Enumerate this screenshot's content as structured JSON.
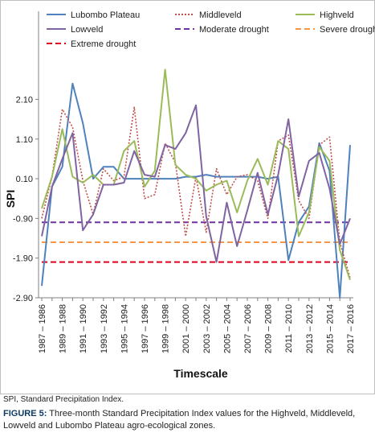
{
  "chart_data": {
    "type": "line",
    "title": "",
    "xlabel": "Timescale",
    "ylabel": "SPI",
    "ylim": [
      -2.9,
      2.9
    ],
    "yticks": [
      "-2.90",
      "-1.90",
      "-0.90",
      "0.10",
      "1.10",
      "2.10"
    ],
    "grid": false,
    "legend_position": "top",
    "categories": [
      "1987–1986",
      "1988–1987",
      "1989–1988",
      "1990–1989",
      "1991–1990",
      "1992–1991",
      "1993–1992",
      "1994–1993",
      "1995–1994",
      "1996–1995",
      "1997–1996",
      "1998–1997",
      "1999–1998",
      "2000–1999",
      "2001–2000",
      "2002–2001",
      "2003–2002",
      "2004–2003",
      "2005–2004",
      "2006–2005",
      "2007–2006",
      "2008–2007",
      "2009–2008",
      "2010–2009",
      "2011–2010",
      "2012–2011",
      "2013–2012",
      "2014–2013",
      "2015–2014",
      "2016–2015",
      "2017–2016"
    ],
    "x_tick_labels": [
      "1987 – 1986",
      "1989 – 1988",
      "1991 – 1990",
      "1993 – 1992",
      "1995 – 1994",
      "1997 – 1996",
      "1999 – 1998",
      "2001 – 2000",
      "2003 – 2002",
      "2005 – 2004",
      "2007 – 2006",
      "2009 – 2008",
      "2011 – 2010",
      "2013 – 2012",
      "2015 – 2014",
      "2017 – 2016"
    ],
    "series": [
      {
        "name": "Lubombo Plateau",
        "color": "#4f81bd",
        "style": "solid",
        "values": [
          -2.6,
          -0.1,
          0.4,
          2.5,
          1.5,
          0.1,
          0.4,
          0.4,
          0.1,
          0.1,
          0.1,
          0.1,
          0.1,
          0.1,
          0.15,
          0.15,
          0.2,
          0.15,
          0.15,
          0.15,
          0.15,
          0.15,
          0.1,
          0.15,
          -1.95,
          -1.0,
          -0.6,
          1.0,
          0.3,
          -2.9,
          0.95
        ]
      },
      {
        "name": "Middleveld",
        "color": "#c0504d",
        "style": "dotted",
        "values": [
          -0.9,
          0.15,
          1.85,
          1.4,
          0.05,
          -0.8,
          0.35,
          0.05,
          0.15,
          1.9,
          -0.4,
          -0.3,
          1.0,
          0.5,
          -1.35,
          0.15,
          -1.25,
          0.35,
          -0.3,
          0.15,
          0.2,
          0.05,
          -0.9,
          1.05,
          1.2,
          -0.45,
          -0.9,
          0.95,
          1.15,
          -1.5,
          -2.4
        ]
      },
      {
        "name": "Highveld",
        "color": "#9bbb59",
        "style": "solid",
        "values": [
          -0.65,
          0.15,
          1.35,
          0.15,
          0.0,
          0.2,
          -0.05,
          -0.05,
          0.8,
          1.05,
          -0.1,
          0.3,
          2.85,
          0.45,
          0.2,
          0.1,
          -0.2,
          -0.05,
          0.05,
          -0.75,
          0.05,
          0.6,
          -0.05,
          1.05,
          0.85,
          -1.35,
          -0.75,
          0.9,
          0.55,
          -1.7,
          -2.45
        ]
      },
      {
        "name": "Lowveld",
        "color": "#8064a2",
        "style": "solid",
        "values": [
          -1.35,
          -0.1,
          0.6,
          1.25,
          -1.2,
          -0.8,
          -0.05,
          -0.05,
          0.0,
          0.8,
          0.2,
          0.15,
          0.95,
          0.85,
          1.25,
          1.95,
          -0.85,
          -2.0,
          -0.5,
          -1.6,
          -0.7,
          0.25,
          -0.8,
          0.2,
          1.6,
          -0.35,
          0.55,
          0.75,
          -0.15,
          -1.55,
          -0.9
        ]
      },
      {
        "name": "Moderate drought",
        "color": "#7030a0",
        "style": "dashed",
        "values_constant": -1.0
      },
      {
        "name": "Severe drought",
        "color": "#f79646",
        "style": "dashed",
        "values_constant": -1.5
      },
      {
        "name": "Extreme drought",
        "color": "#e0001b",
        "style": "dashed",
        "values_constant": -2.0
      }
    ]
  },
  "note": "SPI, Standard Precipitation Index.",
  "caption_label": "FIGURE 5:",
  "caption_text": " Three-month Standard Precipitation Index values for the Highveld, Middleveld, Lowveld and Lubombo Plateau agro-ecological zones."
}
